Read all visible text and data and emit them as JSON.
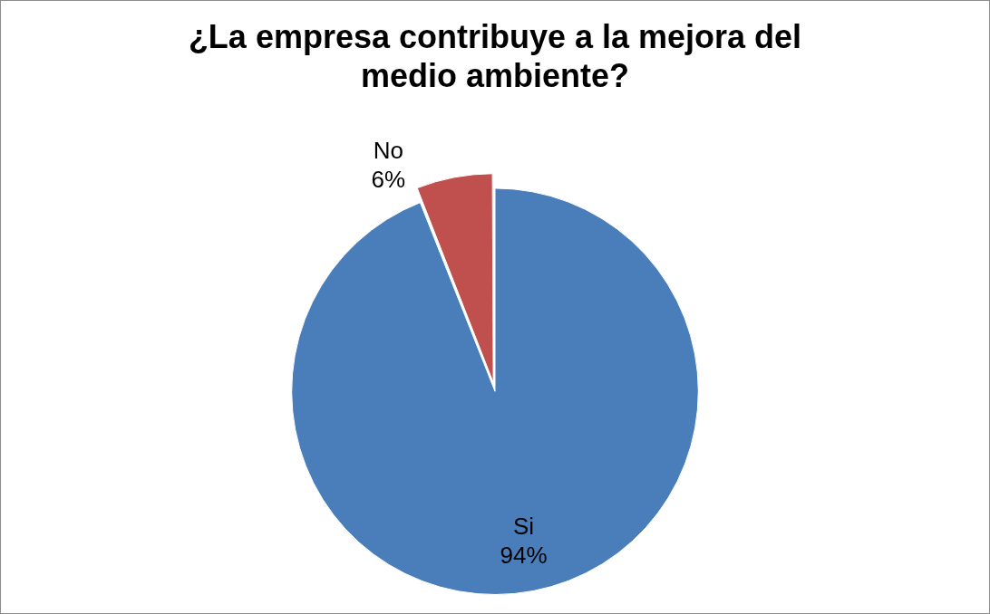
{
  "chart_data": {
    "type": "pie",
    "title": "¿La empresa contribuye a la mejora del medio ambiente?",
    "categories": [
      "Si",
      "No"
    ],
    "values": [
      94,
      6
    ],
    "value_labels": [
      "94%",
      "6%"
    ],
    "colors": [
      "#4a7ebb",
      "#c0504d"
    ],
    "legend": false
  }
}
